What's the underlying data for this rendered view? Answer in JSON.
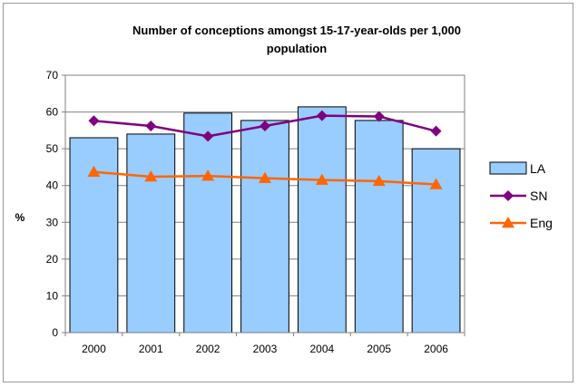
{
  "chart_data": {
    "type": "bar",
    "title_line1": "Number of conceptions amongst 15-17-year-olds per 1,000",
    "title_line2": "population",
    "ylabel": "%",
    "xlabel": "",
    "ylim": [
      0,
      70
    ],
    "yticks": [
      0,
      10,
      20,
      30,
      40,
      50,
      60,
      70
    ],
    "grid": true,
    "legend_position": "right",
    "categories": [
      "2000",
      "2001",
      "2002",
      "2003",
      "2004",
      "2005",
      "2006"
    ],
    "series": [
      {
        "name": "LA",
        "type": "bar",
        "color": "#99CCFF",
        "values": [
          53,
          54,
          59.7,
          57.7,
          61.4,
          57.7,
          50
        ]
      },
      {
        "name": "SN",
        "type": "line",
        "marker": "diamond",
        "color": "#800080",
        "values": [
          57.6,
          56.2,
          53.4,
          56.2,
          59,
          58.8,
          54.8
        ]
      },
      {
        "name": "Eng",
        "type": "line",
        "marker": "triangle",
        "color": "#FF6600",
        "values": [
          43.7,
          42.4,
          42.6,
          42,
          41.5,
          41.2,
          40.3
        ]
      }
    ]
  }
}
